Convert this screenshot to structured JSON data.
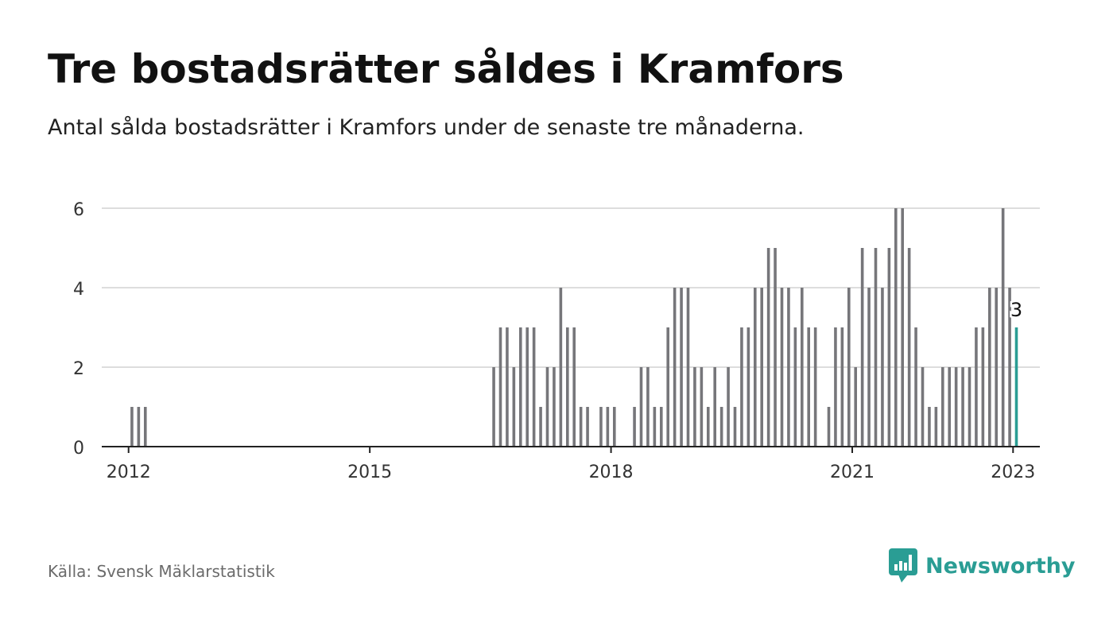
{
  "title": "Tre bostadsrätter såldes i Kramfors",
  "subtitle": "Antal sålda bostadsrätter i Kramfors under de senaste tre månaderna.",
  "source": "Källa: Svensk Mäklarstatistik",
  "brand": {
    "name": "Newsworthy",
    "icon": "newsworthy-logo-icon"
  },
  "colors": {
    "bar": "#76767a",
    "highlight": "#2a9d94",
    "grid": "#dddddd",
    "axis": "#222222"
  },
  "chart_data": {
    "type": "bar",
    "x_type": "month",
    "x_start": "2011-09",
    "x_end": "2023-05",
    "ylim": [
      0,
      6
    ],
    "yticks": [
      0,
      2,
      4,
      6
    ],
    "xticks": [
      "2012",
      "2015",
      "2018",
      "2021",
      "2023"
    ],
    "grid": true,
    "highlight_label": "3",
    "points": [
      {
        "x": "2012-01",
        "y": 1
      },
      {
        "x": "2012-02",
        "y": 1
      },
      {
        "x": "2012-03",
        "y": 1
      },
      {
        "x": "2016-07",
        "y": 2
      },
      {
        "x": "2016-08",
        "y": 3
      },
      {
        "x": "2016-09",
        "y": 3
      },
      {
        "x": "2016-10",
        "y": 2
      },
      {
        "x": "2016-11",
        "y": 3
      },
      {
        "x": "2016-12",
        "y": 3
      },
      {
        "x": "2017-01",
        "y": 3
      },
      {
        "x": "2017-02",
        "y": 1
      },
      {
        "x": "2017-03",
        "y": 2
      },
      {
        "x": "2017-04",
        "y": 2
      },
      {
        "x": "2017-05",
        "y": 4
      },
      {
        "x": "2017-06",
        "y": 3
      },
      {
        "x": "2017-07",
        "y": 3
      },
      {
        "x": "2017-08",
        "y": 1
      },
      {
        "x": "2017-09",
        "y": 1
      },
      {
        "x": "2017-11",
        "y": 1
      },
      {
        "x": "2017-12",
        "y": 1
      },
      {
        "x": "2018-01",
        "y": 1
      },
      {
        "x": "2018-04",
        "y": 1
      },
      {
        "x": "2018-05",
        "y": 2
      },
      {
        "x": "2018-06",
        "y": 2
      },
      {
        "x": "2018-07",
        "y": 1
      },
      {
        "x": "2018-08",
        "y": 1
      },
      {
        "x": "2018-09",
        "y": 3
      },
      {
        "x": "2018-10",
        "y": 4
      },
      {
        "x": "2018-11",
        "y": 4
      },
      {
        "x": "2018-12",
        "y": 4
      },
      {
        "x": "2019-01",
        "y": 2
      },
      {
        "x": "2019-02",
        "y": 2
      },
      {
        "x": "2019-03",
        "y": 1
      },
      {
        "x": "2019-04",
        "y": 2
      },
      {
        "x": "2019-05",
        "y": 1
      },
      {
        "x": "2019-06",
        "y": 2
      },
      {
        "x": "2019-07",
        "y": 1
      },
      {
        "x": "2019-08",
        "y": 3
      },
      {
        "x": "2019-09",
        "y": 3
      },
      {
        "x": "2019-10",
        "y": 4
      },
      {
        "x": "2019-11",
        "y": 4
      },
      {
        "x": "2019-12",
        "y": 5
      },
      {
        "x": "2020-01",
        "y": 5
      },
      {
        "x": "2020-02",
        "y": 4
      },
      {
        "x": "2020-03",
        "y": 4
      },
      {
        "x": "2020-04",
        "y": 3
      },
      {
        "x": "2020-05",
        "y": 4
      },
      {
        "x": "2020-06",
        "y": 3
      },
      {
        "x": "2020-07",
        "y": 3
      },
      {
        "x": "2020-09",
        "y": 1
      },
      {
        "x": "2020-10",
        "y": 3
      },
      {
        "x": "2020-11",
        "y": 3
      },
      {
        "x": "2020-12",
        "y": 4
      },
      {
        "x": "2021-01",
        "y": 2
      },
      {
        "x": "2021-02",
        "y": 5
      },
      {
        "x": "2021-03",
        "y": 4
      },
      {
        "x": "2021-04",
        "y": 5
      },
      {
        "x": "2021-05",
        "y": 4
      },
      {
        "x": "2021-06",
        "y": 5
      },
      {
        "x": "2021-07",
        "y": 6
      },
      {
        "x": "2021-08",
        "y": 6
      },
      {
        "x": "2021-09",
        "y": 5
      },
      {
        "x": "2021-10",
        "y": 3
      },
      {
        "x": "2021-11",
        "y": 2
      },
      {
        "x": "2021-12",
        "y": 1
      },
      {
        "x": "2022-01",
        "y": 1
      },
      {
        "x": "2022-02",
        "y": 2
      },
      {
        "x": "2022-03",
        "y": 2
      },
      {
        "x": "2022-04",
        "y": 2
      },
      {
        "x": "2022-05",
        "y": 2
      },
      {
        "x": "2022-06",
        "y": 2
      },
      {
        "x": "2022-07",
        "y": 3
      },
      {
        "x": "2022-08",
        "y": 3
      },
      {
        "x": "2022-09",
        "y": 4
      },
      {
        "x": "2022-10",
        "y": 4
      },
      {
        "x": "2022-11",
        "y": 6
      },
      {
        "x": "2022-12",
        "y": 4
      },
      {
        "x": "2023-01",
        "y": 3,
        "highlight": true
      }
    ]
  }
}
